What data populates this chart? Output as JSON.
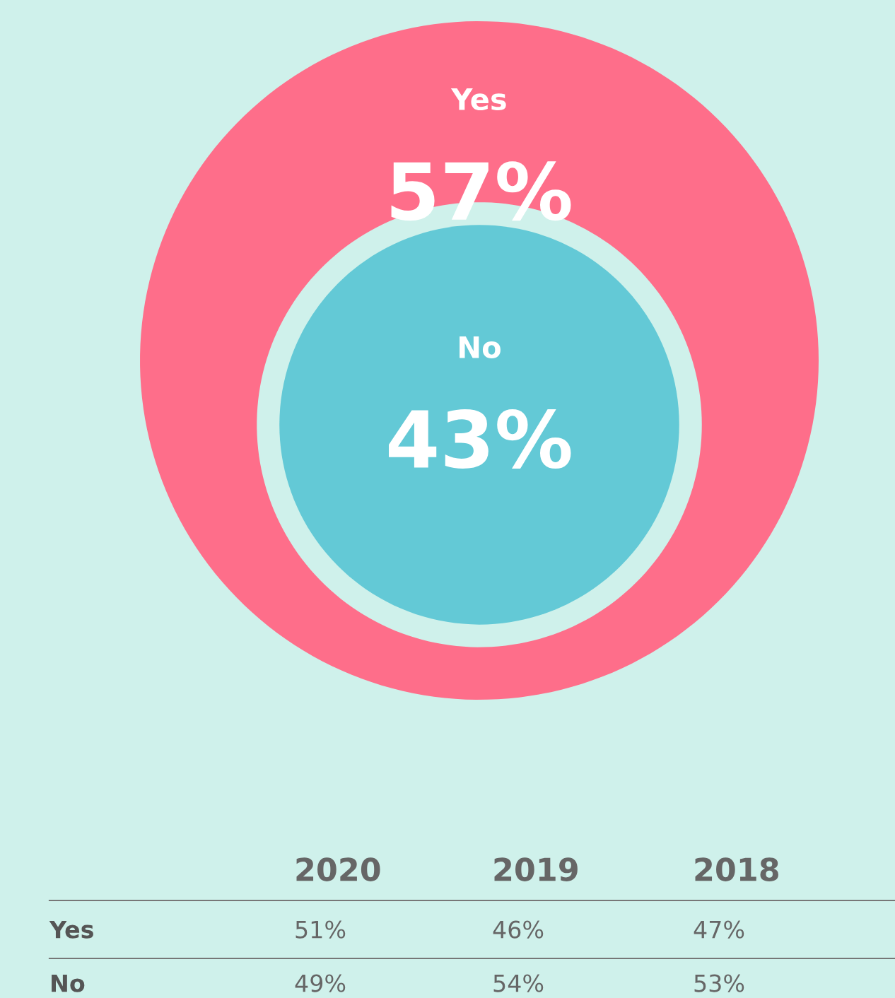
{
  "chart_data": [
    {
      "type": "other",
      "categories": [
        "Yes",
        "No"
      ],
      "values": [
        57,
        43
      ],
      "value_labels": [
        "57%",
        "43%"
      ],
      "colors": [
        "#fe6e8a",
        "#63c9d6"
      ]
    },
    {
      "type": "other",
      "categories": [
        "2020",
        "2019",
        "2018"
      ],
      "series": [
        {
          "name": "Yes",
          "values": [
            51,
            46,
            47
          ],
          "value_labels": [
            "51%",
            "46%",
            "47%"
          ]
        },
        {
          "name": "No",
          "values": [
            49,
            54,
            53
          ],
          "value_labels": [
            "49%",
            "54%",
            "53%"
          ]
        }
      ]
    }
  ]
}
